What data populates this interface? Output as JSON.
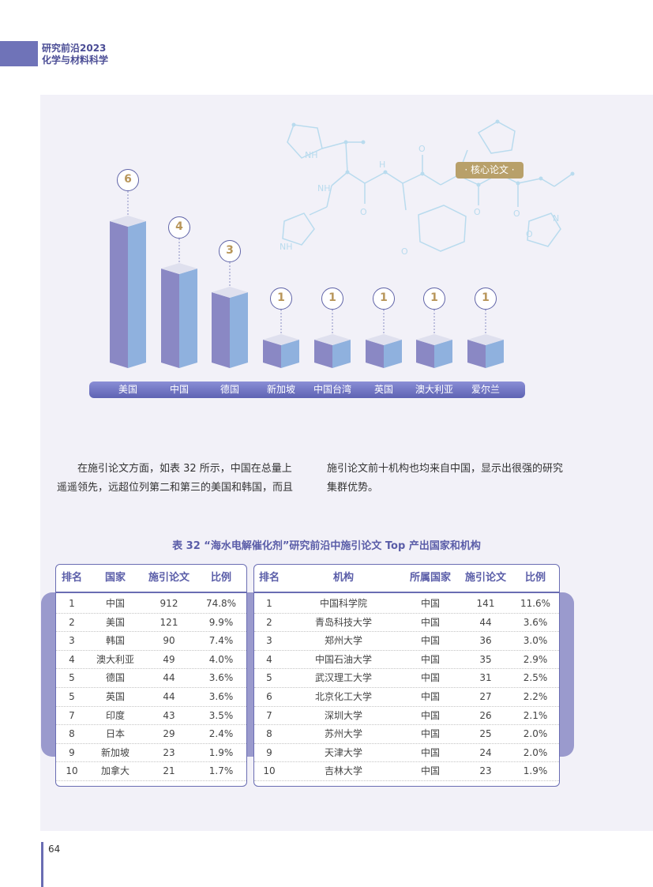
{
  "header": {
    "line1": "研究前沿2023",
    "line2": "化学与材料科学"
  },
  "decoration": {
    "tag": "· 核心论文 ·",
    "nh_label": "NH",
    "n_label": "N",
    "o_label": "O",
    "h_label": "H"
  },
  "colors": {
    "accent": "#6f73b8",
    "bar_left": "#8a88c4",
    "bar_right": "#8fb1de",
    "gold": "#b8965a"
  },
  "chart_data": {
    "type": "bar",
    "categories": [
      "美国",
      "中国",
      "德国",
      "新加坡",
      "中国台湾",
      "英国",
      "澳大利亚",
      "爱尔兰"
    ],
    "values": [
      6,
      4,
      3,
      1,
      1,
      1,
      1,
      1
    ],
    "title": "",
    "xlabel": "",
    "ylabel": "",
    "ylim": [
      0,
      6
    ]
  },
  "body_text": {
    "left": [
      "在施引论文方面，如表 32 所示，中国在总量上",
      "遥遥领先，远超位列第二和第三的美国和韩国，而且"
    ],
    "right": [
      "施引论文前十机构也均来自中国，显示出很强的研究",
      "集群优势。"
    ]
  },
  "table": {
    "title": "表 32 “海水电解催化剂”研究前沿中施引论文 Top 产出国家和机构",
    "countries": {
      "headers": [
        "排名",
        "国家",
        "施引论文",
        "比例"
      ],
      "rows": [
        [
          "1",
          "中国",
          "912",
          "74.8%"
        ],
        [
          "2",
          "美国",
          "121",
          "9.9%"
        ],
        [
          "3",
          "韩国",
          "90",
          "7.4%"
        ],
        [
          "4",
          "澳大利亚",
          "49",
          "4.0%"
        ],
        [
          "5",
          "德国",
          "44",
          "3.6%"
        ],
        [
          "5",
          "英国",
          "44",
          "3.6%"
        ],
        [
          "7",
          "印度",
          "43",
          "3.5%"
        ],
        [
          "8",
          "日本",
          "29",
          "2.4%"
        ],
        [
          "9",
          "新加坡",
          "23",
          "1.9%"
        ],
        [
          "10",
          "加拿大",
          "21",
          "1.7%"
        ]
      ]
    },
    "institutions": {
      "headers": [
        "排名",
        "机构",
        "所属国家",
        "施引论文",
        "比例"
      ],
      "rows": [
        [
          "1",
          "中国科学院",
          "中国",
          "141",
          "11.6%"
        ],
        [
          "2",
          "青岛科技大学",
          "中国",
          "44",
          "3.6%"
        ],
        [
          "3",
          "郑州大学",
          "中国",
          "36",
          "3.0%"
        ],
        [
          "4",
          "中国石油大学",
          "中国",
          "35",
          "2.9%"
        ],
        [
          "5",
          "武汉理工大学",
          "中国",
          "31",
          "2.5%"
        ],
        [
          "6",
          "北京化工大学",
          "中国",
          "27",
          "2.2%"
        ],
        [
          "7",
          "深圳大学",
          "中国",
          "26",
          "2.1%"
        ],
        [
          "8",
          "苏州大学",
          "中国",
          "25",
          "2.0%"
        ],
        [
          "9",
          "天津大学",
          "中国",
          "24",
          "2.0%"
        ],
        [
          "10",
          "吉林大学",
          "中国",
          "23",
          "1.9%"
        ]
      ]
    }
  },
  "page_number": "64"
}
